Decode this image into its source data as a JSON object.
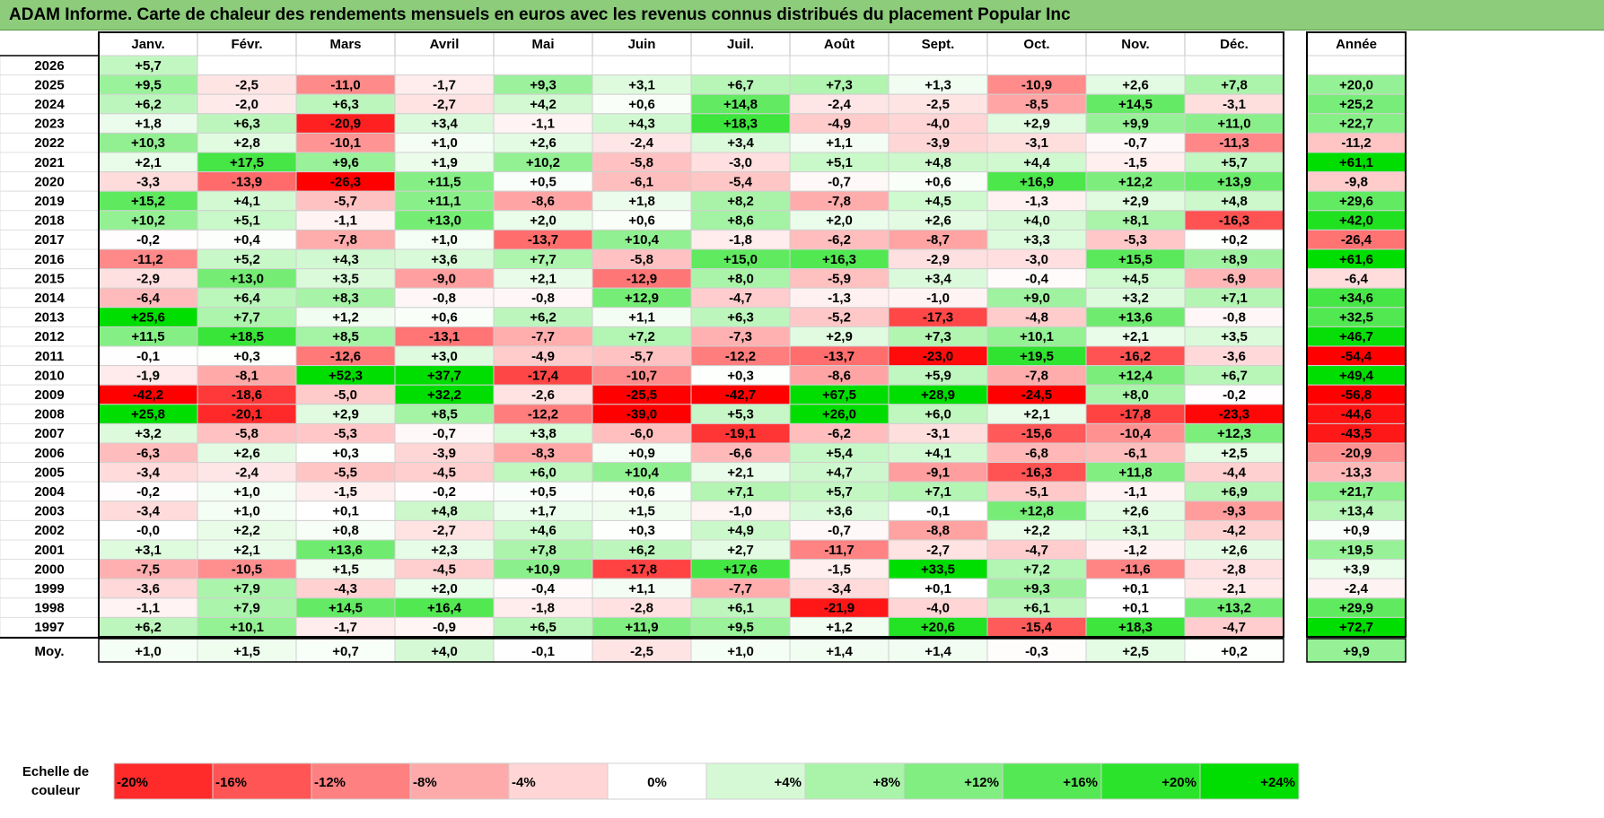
{
  "title": "ADAM Informe. Carte de chaleur des rendements mensuels en euros avec les revenus connus distribués du placement Popular Inc",
  "chart_data": {
    "type": "heatmap",
    "columns": [
      "Janv.",
      "Févr.",
      "Mars",
      "Avril",
      "Mai",
      "Juin",
      "Juil.",
      "Août",
      "Sept.",
      "Oct.",
      "Nov.",
      "Déc."
    ],
    "year_column_label": "Année",
    "avg_row_label": "Moy.",
    "scale_label": "Echelle de couleur",
    "years": [
      "2026",
      "2025",
      "2024",
      "2023",
      "2022",
      "2021",
      "2020",
      "2019",
      "2018",
      "2017",
      "2016",
      "2015",
      "2014",
      "2013",
      "2012",
      "2011",
      "2010",
      "2009",
      "2008",
      "2007",
      "2006",
      "2005",
      "2004",
      "2003",
      "2002",
      "2001",
      "2000",
      "1999",
      "1998",
      "1997"
    ],
    "values": [
      [
        5.7,
        null,
        null,
        null,
        null,
        null,
        null,
        null,
        null,
        null,
        null,
        null
      ],
      [
        9.5,
        -2.5,
        -11.0,
        -1.7,
        9.3,
        3.1,
        6.7,
        7.3,
        1.3,
        -10.9,
        2.6,
        7.8
      ],
      [
        6.2,
        -2.0,
        6.3,
        -2.7,
        4.2,
        0.6,
        14.8,
        -2.4,
        -2.5,
        -8.5,
        14.5,
        -3.1
      ],
      [
        1.8,
        6.3,
        -20.9,
        3.4,
        -1.1,
        4.3,
        18.3,
        -4.9,
        -4.0,
        2.9,
        9.9,
        11.0
      ],
      [
        10.3,
        2.8,
        -10.1,
        1.0,
        2.6,
        -2.4,
        3.4,
        1.1,
        -3.9,
        -3.1,
        -0.7,
        -11.3
      ],
      [
        2.1,
        17.5,
        9.6,
        1.9,
        10.2,
        -5.8,
        -3.0,
        5.1,
        4.8,
        4.4,
        -1.5,
        5.7
      ],
      [
        -3.3,
        -13.9,
        -26.3,
        11.5,
        0.5,
        -6.1,
        -5.4,
        -0.7,
        0.6,
        16.9,
        12.2,
        13.9
      ],
      [
        15.2,
        4.1,
        -5.7,
        11.1,
        -8.6,
        1.8,
        8.2,
        -7.8,
        4.5,
        -1.3,
        2.9,
        4.8
      ],
      [
        10.2,
        5.1,
        -1.1,
        13.0,
        2.0,
        0.6,
        8.6,
        2.0,
        2.6,
        4.0,
        8.1,
        -16.3
      ],
      [
        -0.2,
        0.4,
        -7.8,
        1.0,
        -13.7,
        10.4,
        -1.8,
        -6.2,
        -8.7,
        3.3,
        -5.3,
        0.2
      ],
      [
        -11.2,
        5.2,
        4.3,
        3.6,
        7.7,
        -5.8,
        15.0,
        16.3,
        -2.9,
        -3.0,
        15.5,
        8.9
      ],
      [
        -2.9,
        13.0,
        3.5,
        -9.0,
        2.1,
        -12.9,
        8.0,
        -5.9,
        3.4,
        -0.4,
        4.5,
        -6.9
      ],
      [
        -6.4,
        6.4,
        8.3,
        -0.8,
        -0.8,
        12.9,
        -4.7,
        -1.3,
        -1.0,
        9.0,
        3.2,
        7.1
      ],
      [
        25.6,
        7.7,
        1.2,
        0.6,
        6.2,
        1.1,
        6.3,
        -5.2,
        -17.3,
        -4.8,
        13.6,
        -0.8
      ],
      [
        11.5,
        18.5,
        8.5,
        -13.1,
        -7.7,
        7.2,
        -7.3,
        2.9,
        7.3,
        10.1,
        2.1,
        3.5
      ],
      [
        -0.1,
        0.3,
        -12.6,
        3.0,
        -4.9,
        -5.7,
        -12.2,
        -13.7,
        -23.0,
        19.5,
        -16.2,
        -3.6
      ],
      [
        -1.9,
        -8.1,
        52.3,
        37.7,
        -17.4,
        -10.7,
        0.3,
        -8.6,
        5.9,
        -7.8,
        12.4,
        6.7
      ],
      [
        -42.2,
        -18.6,
        -5.0,
        32.2,
        -2.6,
        -25.5,
        -42.7,
        67.5,
        28.9,
        -24.5,
        8.0,
        -0.2
      ],
      [
        25.8,
        -20.1,
        2.9,
        8.5,
        -12.2,
        -39.0,
        5.3,
        26.0,
        6.0,
        2.1,
        -17.8,
        -23.3
      ],
      [
        3.2,
        -5.8,
        -5.3,
        -0.7,
        3.8,
        -6.0,
        -19.1,
        -6.2,
        -3.1,
        -15.6,
        -10.4,
        12.3
      ],
      [
        -6.3,
        2.6,
        0.3,
        -3.9,
        -8.3,
        0.9,
        -6.6,
        5.4,
        4.1,
        -6.8,
        -6.1,
        2.5
      ],
      [
        -3.4,
        -2.4,
        -5.5,
        -4.5,
        6.0,
        10.4,
        2.1,
        4.7,
        -9.1,
        -16.3,
        11.8,
        -4.4
      ],
      [
        -0.2,
        1.0,
        -1.5,
        -0.2,
        0.5,
        0.6,
        7.1,
        5.7,
        7.1,
        -5.1,
        -1.1,
        6.9
      ],
      [
        -3.4,
        1.0,
        0.1,
        4.8,
        1.7,
        1.5,
        -1.0,
        3.6,
        -0.1,
        12.8,
        2.6,
        -9.3
      ],
      [
        -0.0,
        2.2,
        0.8,
        -2.7,
        4.6,
        0.3,
        4.9,
        -0.7,
        -8.8,
        2.2,
        3.1,
        -4.2
      ],
      [
        3.1,
        2.1,
        13.6,
        2.3,
        7.8,
        6.2,
        2.7,
        -11.7,
        -2.7,
        -4.7,
        -1.2,
        2.6
      ],
      [
        -7.5,
        -10.5,
        1.5,
        -4.5,
        10.9,
        -17.8,
        17.6,
        -1.5,
        33.5,
        7.2,
        -11.6,
        -2.8
      ],
      [
        -3.6,
        7.9,
        -4.3,
        2.0,
        -0.4,
        1.1,
        -7.7,
        -3.4,
        0.1,
        9.3,
        0.1,
        -2.1
      ],
      [
        -1.1,
        7.9,
        14.5,
        16.4,
        -1.8,
        -2.8,
        6.1,
        -21.9,
        -4.0,
        6.1,
        0.1,
        13.2
      ],
      [
        6.2,
        10.1,
        -1.7,
        -0.9,
        6.5,
        11.9,
        9.5,
        1.2,
        20.6,
        -15.4,
        18.3,
        -4.7
      ]
    ],
    "annual": [
      null,
      20.0,
      25.2,
      22.7,
      -11.2,
      61.1,
      -9.8,
      29.6,
      42.0,
      -26.4,
      61.6,
      -6.4,
      34.6,
      32.5,
      46.7,
      -54.4,
      49.4,
      -56.8,
      -44.6,
      -43.5,
      -20.9,
      -13.3,
      21.7,
      13.4,
      0.9,
      19.5,
      3.9,
      -2.4,
      29.9,
      72.7
    ],
    "averages": [
      1.0,
      1.5,
      0.7,
      4.0,
      -0.1,
      -2.5,
      1.0,
      1.4,
      1.4,
      -0.3,
      2.5,
      0.2
    ],
    "annual_average": 9.9,
    "scale_values": [
      -20,
      -16,
      -12,
      -8,
      -4,
      0,
      4,
      8,
      12,
      16,
      20,
      24
    ],
    "scale_labels": [
      "-20%",
      "-16%",
      "-12%",
      "-8%",
      "-4%",
      "0%",
      "+4%",
      "+8%",
      "+12%",
      "+16%",
      "+20%",
      "+24%"
    ],
    "colors": {
      "negative_max": "#ff0000",
      "neutral": "#ffffff",
      "positive_max": "#00dd00",
      "title_bar": "#8ccc7a"
    }
  }
}
